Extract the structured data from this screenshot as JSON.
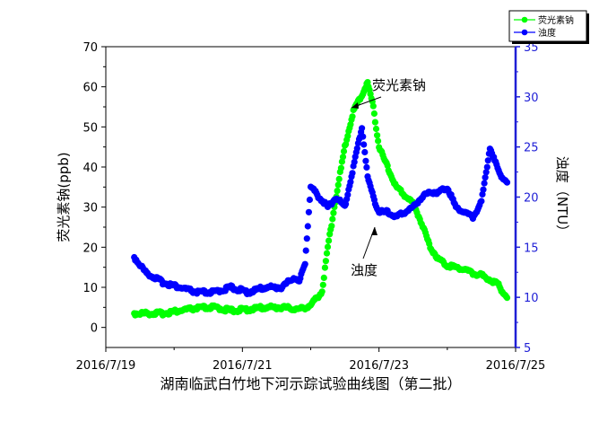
{
  "chart_data": {
    "type": "scatter",
    "title": "",
    "xlabel": "湖南临武白竹地下河示踪试验曲线图（第二批）",
    "ylabel_left": "荧光素钠(ppb)",
    "ylabel_right": "浊度（NTU）",
    "x_ticks": [
      "2016/7/19",
      "2016/7/21",
      "2016/7/23",
      "2016/7/25"
    ],
    "y_left_ticks": [
      "0",
      "10",
      "20",
      "30",
      "40",
      "50",
      "60",
      "70"
    ],
    "y_right_ticks": [
      "5",
      "10",
      "15",
      "20",
      "25",
      "30",
      "35"
    ],
    "xlim": [
      "2016-07-19 00:00",
      "2016-07-25 00:00"
    ],
    "ylim_left": [
      -5,
      70
    ],
    "ylim_right": [
      5,
      35
    ],
    "legend_position": "top-right",
    "annotations": [
      {
        "text": "荧光素钠",
        "points_to": "荧光素钠"
      },
      {
        "text": "浊度",
        "points_to": "浊度"
      }
    ],
    "series": [
      {
        "name": "荧光素钠",
        "axis": "left",
        "color": "#00ff00",
        "x": [
          "2016-07-19 10:00",
          "2016-07-19 14:00",
          "2016-07-19 20:00",
          "2016-07-20 02:00",
          "2016-07-20 08:00",
          "2016-07-20 14:00",
          "2016-07-20 20:00",
          "2016-07-21 02:00",
          "2016-07-21 08:00",
          "2016-07-21 14:00",
          "2016-07-21 20:00",
          "2016-07-22 00:00",
          "2016-07-22 04:00",
          "2016-07-22 06:00",
          "2016-07-22 09:00",
          "2016-07-22 12:00",
          "2016-07-22 15:00",
          "2016-07-22 18:00",
          "2016-07-22 20:00",
          "2016-07-22 22:00",
          "2016-07-23 00:00",
          "2016-07-23 03:00",
          "2016-07-23 06:00",
          "2016-07-23 09:00",
          "2016-07-23 12:00",
          "2016-07-23 15:00",
          "2016-07-23 18:00",
          "2016-07-23 21:00",
          "2016-07-24 00:00",
          "2016-07-24 03:00",
          "2016-07-24 06:00",
          "2016-07-24 09:00",
          "2016-07-24 12:00",
          "2016-07-24 15:00",
          "2016-07-24 18:00",
          "2016-07-24 21:00"
        ],
        "values": [
          3.5,
          3.5,
          3.5,
          4.2,
          4.8,
          5.0,
          4.2,
          4.5,
          5.0,
          5.0,
          4.5,
          5.5,
          9.0,
          20.0,
          33.0,
          45.0,
          54.0,
          58.0,
          61.0,
          55.0,
          45.0,
          40.0,
          35.0,
          33.0,
          31.0,
          26.0,
          20.0,
          17.0,
          15.5,
          15.0,
          14.5,
          13.5,
          13.0,
          12.0,
          10.5,
          7.5
        ]
      },
      {
        "name": "浊度",
        "axis": "right",
        "color": "#0000ff",
        "x": [
          "2016-07-19 10:00",
          "2016-07-19 14:00",
          "2016-07-19 20:00",
          "2016-07-20 02:00",
          "2016-07-20 08:00",
          "2016-07-20 14:00",
          "2016-07-20 20:00",
          "2016-07-21 02:00",
          "2016-07-21 08:00",
          "2016-07-21 14:00",
          "2016-07-21 18:00",
          "2016-07-21 20:00",
          "2016-07-21 22:00",
          "2016-07-22 00:00",
          "2016-07-22 03:00",
          "2016-07-22 06:00",
          "2016-07-22 09:00",
          "2016-07-22 12:00",
          "2016-07-22 15:00",
          "2016-07-22 18:00",
          "2016-07-22 20:00",
          "2016-07-22 22:00",
          "2016-07-23 00:00",
          "2016-07-23 03:00",
          "2016-07-23 06:00",
          "2016-07-23 09:00",
          "2016-07-23 12:00",
          "2016-07-23 15:00",
          "2016-07-23 18:00",
          "2016-07-23 21:00",
          "2016-07-24 00:00",
          "2016-07-24 03:00",
          "2016-07-24 06:00",
          "2016-07-24 09:00",
          "2016-07-24 12:00",
          "2016-07-24 15:00",
          "2016-07-24 18:00",
          "2016-07-24 21:00"
        ],
        "values": [
          14.0,
          12.5,
          11.5,
          11.0,
          10.5,
          10.5,
          11.0,
          10.5,
          11.0,
          11.0,
          12.0,
          11.5,
          13.5,
          21.0,
          20.0,
          19.0,
          20.0,
          19.0,
          23.0,
          27.0,
          22.0,
          20.0,
          18.5,
          18.5,
          18.0,
          18.5,
          19.0,
          20.0,
          20.5,
          20.5,
          21.0,
          19.0,
          18.5,
          18.0,
          19.5,
          25.0,
          22.5,
          21.5
        ]
      }
    ]
  }
}
